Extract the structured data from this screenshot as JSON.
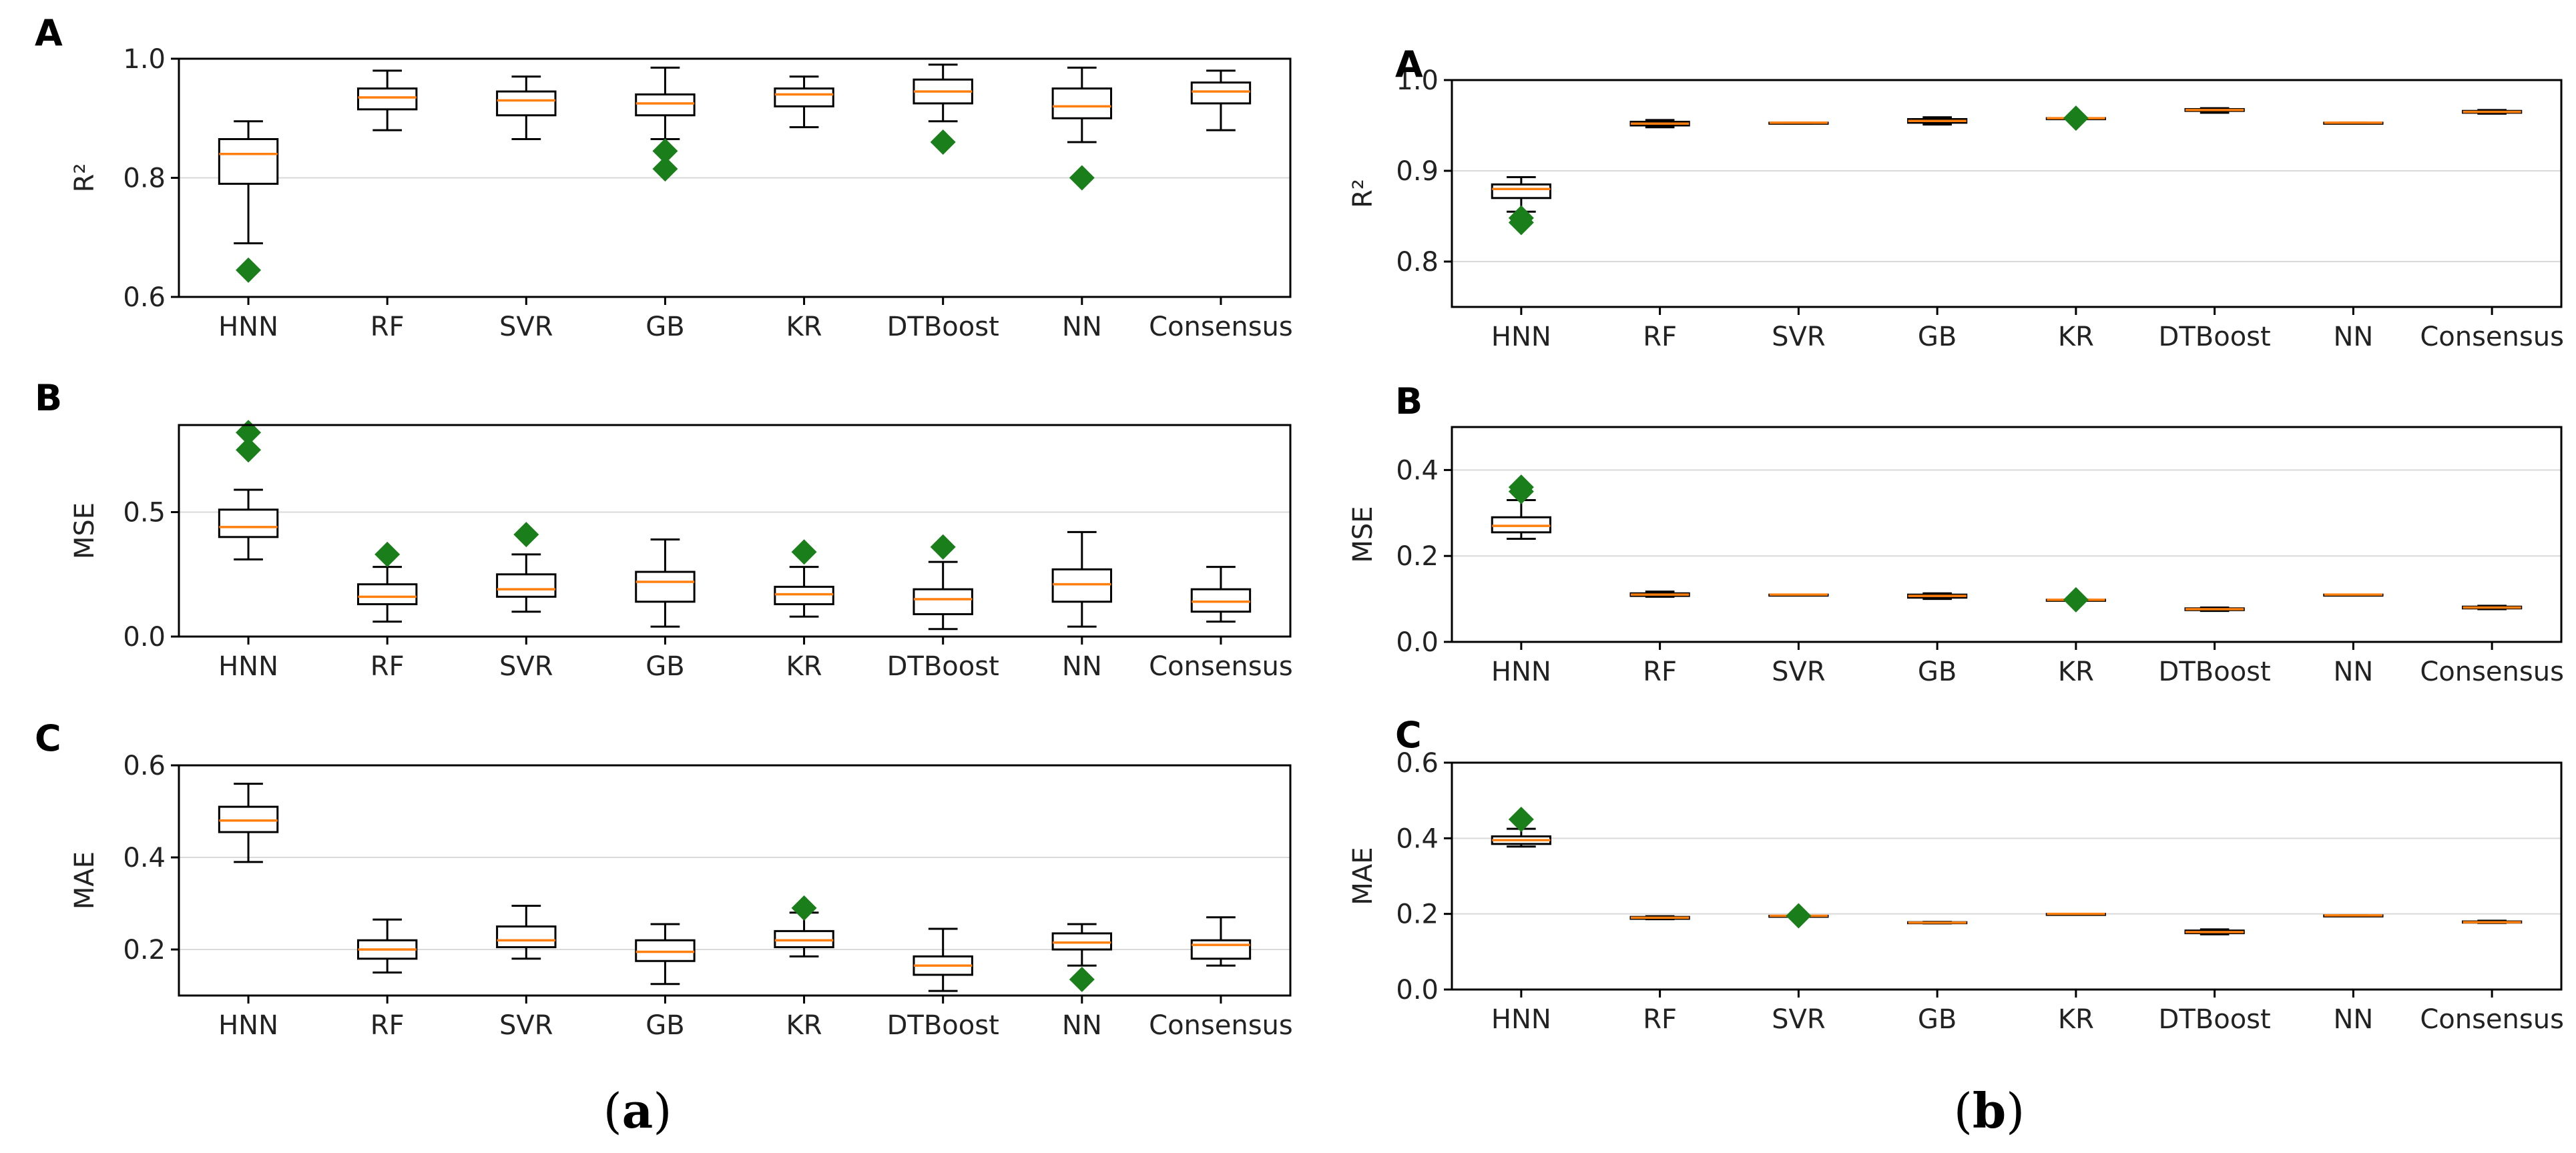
{
  "figure": {
    "caption_a": {
      "open": "(",
      "letter": "a",
      "close": ")"
    },
    "caption_b": {
      "open": "(",
      "letter": "b",
      "close": ")"
    }
  },
  "colors": {
    "median": "#ff7f0e",
    "outlier": "#1a7f1a",
    "box": "#000000",
    "grid": "#d9d9d9"
  },
  "chart_data": [
    {
      "type": "box",
      "group": "a",
      "panel": "A",
      "ylabel": "R²",
      "ylim": [
        0.6,
        1.0
      ],
      "yticks": [
        0.6,
        0.8,
        1.0
      ],
      "ytick_labels": [
        "0.6",
        "0.8",
        "1.0"
      ],
      "categories": [
        "HNN",
        "RF",
        "SVR",
        "GB",
        "KR",
        "DTBoost",
        "NN",
        "Consensus"
      ],
      "boxes": [
        {
          "whislo": 0.69,
          "q1": 0.79,
          "med": 0.84,
          "q3": 0.865,
          "whishi": 0.895,
          "fliers": [
            0.645
          ]
        },
        {
          "whislo": 0.88,
          "q1": 0.915,
          "med": 0.935,
          "q3": 0.95,
          "whishi": 0.98,
          "fliers": []
        },
        {
          "whislo": 0.865,
          "q1": 0.905,
          "med": 0.93,
          "q3": 0.945,
          "whishi": 0.97,
          "fliers": []
        },
        {
          "whislo": 0.865,
          "q1": 0.905,
          "med": 0.925,
          "q3": 0.94,
          "whishi": 0.985,
          "fliers": [
            0.845,
            0.815
          ]
        },
        {
          "whislo": 0.885,
          "q1": 0.92,
          "med": 0.94,
          "q3": 0.95,
          "whishi": 0.97,
          "fliers": []
        },
        {
          "whislo": 0.895,
          "q1": 0.925,
          "med": 0.945,
          "q3": 0.965,
          "whishi": 0.99,
          "fliers": [
            0.86
          ]
        },
        {
          "whislo": 0.86,
          "q1": 0.9,
          "med": 0.92,
          "q3": 0.95,
          "whishi": 0.985,
          "fliers": [
            0.8
          ]
        },
        {
          "whislo": 0.88,
          "q1": 0.925,
          "med": 0.945,
          "q3": 0.96,
          "whishi": 0.98,
          "fliers": []
        }
      ]
    },
    {
      "type": "box",
      "group": "a",
      "panel": "B",
      "ylabel": "MSE",
      "ylim": [
        0.0,
        0.85
      ],
      "yticks": [
        0.0,
        0.5
      ],
      "ytick_labels": [
        "0.0",
        "0.5"
      ],
      "categories": [
        "HNN",
        "RF",
        "SVR",
        "GB",
        "KR",
        "DTBoost",
        "NN",
        "Consensus"
      ],
      "boxes": [
        {
          "whislo": 0.31,
          "q1": 0.4,
          "med": 0.44,
          "q3": 0.51,
          "whishi": 0.59,
          "fliers": [
            0.82,
            0.75
          ]
        },
        {
          "whislo": 0.06,
          "q1": 0.13,
          "med": 0.16,
          "q3": 0.21,
          "whishi": 0.28,
          "fliers": [
            0.33
          ]
        },
        {
          "whislo": 0.1,
          "q1": 0.16,
          "med": 0.19,
          "q3": 0.25,
          "whishi": 0.33,
          "fliers": [
            0.41
          ]
        },
        {
          "whislo": 0.04,
          "q1": 0.14,
          "med": 0.22,
          "q3": 0.26,
          "whishi": 0.39,
          "fliers": []
        },
        {
          "whislo": 0.08,
          "q1": 0.13,
          "med": 0.17,
          "q3": 0.2,
          "whishi": 0.28,
          "fliers": [
            0.34
          ]
        },
        {
          "whislo": 0.03,
          "q1": 0.09,
          "med": 0.15,
          "q3": 0.19,
          "whishi": 0.3,
          "fliers": [
            0.36
          ]
        },
        {
          "whislo": 0.04,
          "q1": 0.14,
          "med": 0.21,
          "q3": 0.27,
          "whishi": 0.42,
          "fliers": []
        },
        {
          "whislo": 0.06,
          "q1": 0.1,
          "med": 0.14,
          "q3": 0.19,
          "whishi": 0.28,
          "fliers": []
        }
      ]
    },
    {
      "type": "box",
      "group": "a",
      "panel": "C",
      "ylabel": "MAE",
      "ylim": [
        0.1,
        0.6
      ],
      "yticks": [
        0.2,
        0.4,
        0.6
      ],
      "ytick_labels": [
        "0.2",
        "0.4",
        "0.6"
      ],
      "categories": [
        "HNN",
        "RF",
        "SVR",
        "GB",
        "KR",
        "DTBoost",
        "NN",
        "Consensus"
      ],
      "boxes": [
        {
          "whislo": 0.39,
          "q1": 0.455,
          "med": 0.48,
          "q3": 0.51,
          "whishi": 0.56,
          "fliers": []
        },
        {
          "whislo": 0.15,
          "q1": 0.18,
          "med": 0.2,
          "q3": 0.22,
          "whishi": 0.265,
          "fliers": []
        },
        {
          "whislo": 0.18,
          "q1": 0.205,
          "med": 0.22,
          "q3": 0.25,
          "whishi": 0.295,
          "fliers": []
        },
        {
          "whislo": 0.125,
          "q1": 0.175,
          "med": 0.195,
          "q3": 0.22,
          "whishi": 0.255,
          "fliers": []
        },
        {
          "whislo": 0.185,
          "q1": 0.205,
          "med": 0.22,
          "q3": 0.24,
          "whishi": 0.28,
          "fliers": [
            0.29
          ]
        },
        {
          "whislo": 0.11,
          "q1": 0.145,
          "med": 0.165,
          "q3": 0.185,
          "whishi": 0.245,
          "fliers": []
        },
        {
          "whislo": 0.165,
          "q1": 0.2,
          "med": 0.215,
          "q3": 0.235,
          "whishi": 0.255,
          "fliers": [
            0.135
          ]
        },
        {
          "whislo": 0.165,
          "q1": 0.18,
          "med": 0.21,
          "q3": 0.22,
          "whishi": 0.27,
          "fliers": []
        }
      ]
    },
    {
      "type": "box",
      "group": "b",
      "panel": "A",
      "ylabel": "R²",
      "ylim": [
        0.75,
        1.0
      ],
      "yticks": [
        0.8,
        0.9,
        1.0
      ],
      "ytick_labels": [
        "0.8",
        "0.9",
        "1.0"
      ],
      "categories": [
        "HNN",
        "RF",
        "SVR",
        "GB",
        "KR",
        "DTBoost",
        "NN",
        "Consensus"
      ],
      "boxes": [
        {
          "whislo": 0.855,
          "q1": 0.87,
          "med": 0.88,
          "q3": 0.885,
          "whishi": 0.893,
          "fliers": [
            0.848,
            0.843
          ]
        },
        {
          "whislo": 0.948,
          "q1": 0.95,
          "med": 0.952,
          "q3": 0.954,
          "whishi": 0.956,
          "fliers": []
        },
        {
          "whislo": 0.952,
          "q1": 0.952,
          "med": 0.953,
          "q3": 0.953,
          "whishi": 0.953,
          "fliers": []
        },
        {
          "whislo": 0.951,
          "q1": 0.953,
          "med": 0.955,
          "q3": 0.957,
          "whishi": 0.959,
          "fliers": []
        },
        {
          "whislo": 0.958,
          "q1": 0.958,
          "med": 0.958,
          "q3": 0.958,
          "whishi": 0.958,
          "fliers": [
            0.958
          ]
        },
        {
          "whislo": 0.964,
          "q1": 0.966,
          "med": 0.967,
          "q3": 0.968,
          "whishi": 0.969,
          "fliers": []
        },
        {
          "whislo": 0.953,
          "q1": 0.953,
          "med": 0.953,
          "q3": 0.953,
          "whishi": 0.953,
          "fliers": []
        },
        {
          "whislo": 0.963,
          "q1": 0.964,
          "med": 0.965,
          "q3": 0.966,
          "whishi": 0.967,
          "fliers": []
        }
      ]
    },
    {
      "type": "box",
      "group": "b",
      "panel": "B",
      "ylabel": "MSE",
      "ylim": [
        0.0,
        0.5
      ],
      "yticks": [
        0.0,
        0.2,
        0.4
      ],
      "ytick_labels": [
        "0.0",
        "0.2",
        "0.4"
      ],
      "categories": [
        "HNN",
        "RF",
        "SVR",
        "GB",
        "KR",
        "DTBoost",
        "NN",
        "Consensus"
      ],
      "boxes": [
        {
          "whislo": 0.24,
          "q1": 0.255,
          "med": 0.27,
          "q3": 0.29,
          "whishi": 0.33,
          "fliers": [
            0.35,
            0.36
          ]
        },
        {
          "whislo": 0.105,
          "q1": 0.107,
          "med": 0.11,
          "q3": 0.113,
          "whishi": 0.117,
          "fliers": []
        },
        {
          "whislo": 0.11,
          "q1": 0.11,
          "med": 0.11,
          "q3": 0.11,
          "whishi": 0.11,
          "fliers": []
        },
        {
          "whislo": 0.1,
          "q1": 0.103,
          "med": 0.107,
          "q3": 0.11,
          "whishi": 0.113,
          "fliers": []
        },
        {
          "whislo": 0.098,
          "q1": 0.098,
          "med": 0.098,
          "q3": 0.098,
          "whishi": 0.098,
          "fliers": [
            0.098
          ]
        },
        {
          "whislo": 0.072,
          "q1": 0.074,
          "med": 0.076,
          "q3": 0.078,
          "whishi": 0.08,
          "fliers": []
        },
        {
          "whislo": 0.11,
          "q1": 0.11,
          "med": 0.11,
          "q3": 0.11,
          "whishi": 0.11,
          "fliers": []
        },
        {
          "whislo": 0.076,
          "q1": 0.078,
          "med": 0.08,
          "q3": 0.082,
          "whishi": 0.084,
          "fliers": []
        }
      ]
    },
    {
      "type": "box",
      "group": "b",
      "panel": "C",
      "ylabel": "MAE",
      "ylim": [
        0.0,
        0.6
      ],
      "yticks": [
        0.0,
        0.2,
        0.4,
        0.6
      ],
      "ytick_labels": [
        "0.0",
        "0.2",
        "0.4",
        "0.6"
      ],
      "categories": [
        "HNN",
        "RF",
        "SVR",
        "GB",
        "KR",
        "DTBoost",
        "NN",
        "Consensus"
      ],
      "boxes": [
        {
          "whislo": 0.378,
          "q1": 0.385,
          "med": 0.395,
          "q3": 0.405,
          "whishi": 0.425,
          "fliers": [
            0.45
          ]
        },
        {
          "whislo": 0.186,
          "q1": 0.187,
          "med": 0.19,
          "q3": 0.192,
          "whishi": 0.194,
          "fliers": []
        },
        {
          "whislo": 0.195,
          "q1": 0.195,
          "med": 0.195,
          "q3": 0.195,
          "whishi": 0.195,
          "fliers": [
            0.195
          ]
        },
        {
          "whislo": 0.175,
          "q1": 0.176,
          "med": 0.177,
          "q3": 0.178,
          "whishi": 0.179,
          "fliers": []
        },
        {
          "whislo": 0.2,
          "q1": 0.2,
          "med": 0.2,
          "q3": 0.2,
          "whishi": 0.2,
          "fliers": []
        },
        {
          "whislo": 0.146,
          "q1": 0.149,
          "med": 0.152,
          "q3": 0.156,
          "whishi": 0.159,
          "fliers": []
        },
        {
          "whislo": 0.196,
          "q1": 0.196,
          "med": 0.196,
          "q3": 0.196,
          "whishi": 0.196,
          "fliers": []
        },
        {
          "whislo": 0.176,
          "q1": 0.177,
          "med": 0.178,
          "q3": 0.18,
          "whishi": 0.182,
          "fliers": []
        }
      ]
    }
  ]
}
